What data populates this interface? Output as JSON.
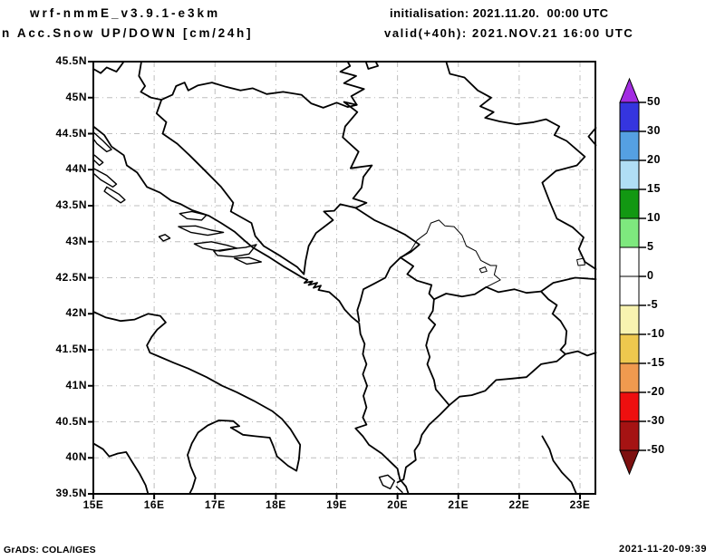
{
  "header": {
    "model_title": "wrf-nmmE_v3.9.1-e3km",
    "field_title": "n Acc.Snow UP/DOWN [cm/24h]",
    "init_line": "initialisation: 2021.11.20.  00:00 UTC",
    "valid_line": "valid(+40h): 2021.NOV.21 16:00 UTC"
  },
  "map": {
    "x_tick_labels": [
      "15E",
      "16E",
      "17E",
      "18E",
      "19E",
      "20E",
      "21E",
      "22E",
      "23E"
    ],
    "y_tick_labels": [
      "45.5N",
      "45N",
      "44.5N",
      "44N",
      "43.5N",
      "43N",
      "42.5N",
      "42N",
      "41.5N",
      "41N",
      "40.5N",
      "40N",
      "39.5N"
    ],
    "lon_range_deg_east": [
      15,
      23.25
    ],
    "lat_range_deg_north": [
      39.5,
      45.5
    ],
    "grid_color": "#bdbdbd",
    "line_color": "#000000"
  },
  "colorbar": {
    "units": "cm/24h",
    "tick_labels": [
      "50",
      "30",
      "20",
      "15",
      "10",
      "5",
      "0",
      "-5",
      "-10",
      "-15",
      "-20",
      "-30",
      "-50"
    ],
    "levels": [
      50,
      30,
      20,
      15,
      10,
      5,
      0,
      -5,
      -10,
      -15,
      -20,
      -30,
      -50
    ],
    "segment_colors": [
      "#3535df",
      "#55a0e2",
      "#b0def5",
      "#129812",
      "#7ee87e",
      "#ffffff",
      "#ffffff",
      "#f8f3b0",
      "#eec84e",
      "#f09a4f",
      "#ee0f0f",
      "#a51313"
    ],
    "arrow_top_color": "#a22ce2",
    "arrow_bottom_color": "#7d1010"
  },
  "footer": {
    "left": "GrADS: COLA/IGES",
    "right": "2021-11-20-09:39"
  }
}
